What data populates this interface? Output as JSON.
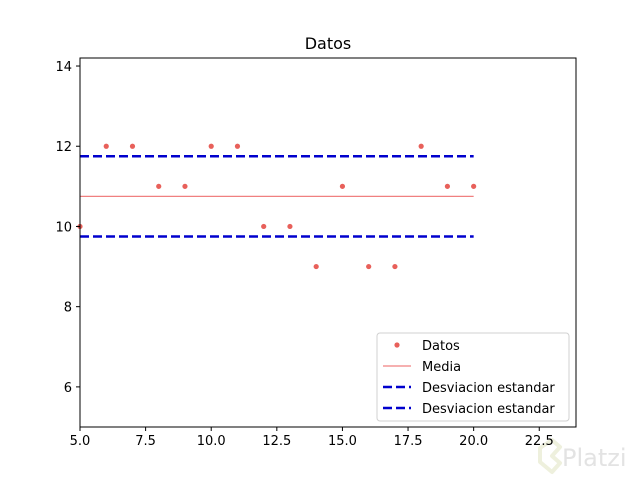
{
  "chart_data": {
    "type": "scatter",
    "title": "Datos",
    "xlabel": "",
    "ylabel": "",
    "xlim": [
      5.0,
      23.9
    ],
    "ylim": [
      5.0,
      14.2
    ],
    "xticks": [
      5.0,
      7.5,
      10.0,
      12.5,
      15.0,
      17.5,
      20.0,
      22.5
    ],
    "xtick_labels": [
      "5.0",
      "7.5",
      "10.0",
      "12.5",
      "15.0",
      "17.5",
      "20.0",
      "22.5"
    ],
    "yticks": [
      6,
      8,
      10,
      12,
      14
    ],
    "ytick_labels": [
      "6",
      "8",
      "10",
      "12",
      "14"
    ],
    "grid": false,
    "legend_position": "bottom-right",
    "series": [
      {
        "name": "Datos",
        "kind": "scatter",
        "color": "#e8605a",
        "x": [
          5,
          6,
          7,
          8,
          9,
          10,
          11,
          12,
          13,
          14,
          15,
          16,
          17,
          18,
          19,
          20
        ],
        "y": [
          10,
          12,
          12,
          11,
          11,
          12,
          12,
          10,
          10,
          9,
          11,
          9,
          9,
          12,
          11,
          11
        ]
      },
      {
        "name": "Media",
        "kind": "line",
        "style": "solid",
        "color": "#f08080",
        "x": [
          5,
          20
        ],
        "y": [
          10.75,
          10.75
        ]
      },
      {
        "name": "Desviacion estandar",
        "kind": "line",
        "style": "dashed",
        "color": "#0000cd",
        "x": [
          5,
          20
        ],
        "y": [
          11.75,
          11.75
        ]
      },
      {
        "name": "Desviacion estandar",
        "kind": "line",
        "style": "dashed",
        "color": "#0000cd",
        "x": [
          5,
          20
        ],
        "y": [
          9.75,
          9.75
        ]
      }
    ]
  },
  "watermark": {
    "text": "Platzi"
  }
}
